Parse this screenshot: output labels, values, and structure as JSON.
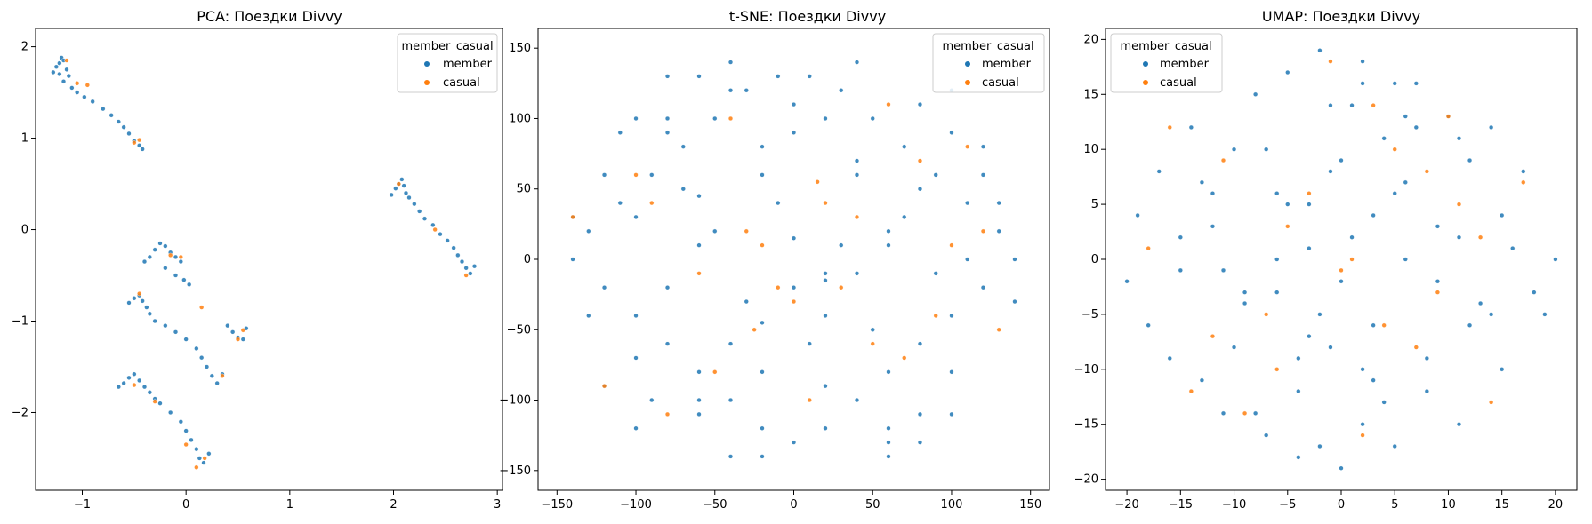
{
  "figure": {
    "background": "#ffffff"
  },
  "colors": {
    "member": "#1f77b4",
    "casual": "#ff7f0e"
  },
  "chart_data": [
    {
      "type": "scatter",
      "id": "pca",
      "title": "PCA: Поездки Divvy",
      "xlabel": "",
      "ylabel": "",
      "xlim": [
        -1.45,
        3.05
      ],
      "ylim": [
        -2.85,
        2.2
      ],
      "xticks": [
        {
          "v": -1,
          "label": "−1"
        },
        {
          "v": 0,
          "label": "0"
        },
        {
          "v": 1,
          "label": "1"
        },
        {
          "v": 2,
          "label": "2"
        },
        {
          "v": 3,
          "label": "3"
        }
      ],
      "yticks": [
        {
          "v": -2,
          "label": "−2"
        },
        {
          "v": -1,
          "label": "−1"
        },
        {
          "v": 0,
          "label": "0"
        },
        {
          "v": 1,
          "label": "1"
        },
        {
          "v": 2,
          "label": "2"
        }
      ],
      "legend": {
        "title": "member_casual",
        "position": "top-right",
        "entries": [
          {
            "label": "member",
            "color": "#1f77b4"
          },
          {
            "label": "casual",
            "color": "#ff7f0e"
          }
        ]
      },
      "series": [
        {
          "name": "member",
          "color": "#1f77b4",
          "x": [
            -1.28,
            -1.25,
            -1.22,
            -1.2,
            -1.18,
            -1.15,
            -1.13,
            -1.22,
            -1.18,
            -1.1,
            -1.05,
            -0.98,
            -0.9,
            -0.8,
            -0.72,
            -0.65,
            -0.6,
            -0.55,
            -0.5,
            -0.45,
            -0.42,
            1.98,
            2.02,
            2.05,
            2.08,
            2.1,
            2.12,
            2.15,
            2.2,
            2.25,
            2.3,
            2.38,
            2.45,
            2.52,
            2.58,
            2.62,
            2.66,
            2.7,
            2.74,
            2.78,
            -0.4,
            -0.35,
            -0.3,
            -0.25,
            -0.2,
            -0.15,
            -0.1,
            -0.05,
            -0.2,
            -0.1,
            -0.02,
            0.03,
            -0.55,
            -0.5,
            -0.45,
            -0.42,
            -0.38,
            -0.35,
            -0.3,
            -0.2,
            -0.1,
            0.0,
            0.1,
            0.15,
            0.2,
            0.25,
            0.3,
            0.35,
            0.4,
            0.45,
            0.5,
            0.55,
            0.58,
            -0.65,
            -0.6,
            -0.55,
            -0.5,
            -0.45,
            -0.4,
            -0.35,
            -0.3,
            -0.25,
            -0.15,
            -0.05,
            0.0,
            0.05,
            0.1,
            0.13,
            0.17,
            0.22
          ],
          "y": [
            1.72,
            1.78,
            1.82,
            1.88,
            1.85,
            1.75,
            1.68,
            1.7,
            1.62,
            1.55,
            1.5,
            1.45,
            1.4,
            1.32,
            1.25,
            1.18,
            1.12,
            1.05,
            0.97,
            0.92,
            0.88,
            0.38,
            0.45,
            0.5,
            0.55,
            0.48,
            0.4,
            0.35,
            0.28,
            0.2,
            0.12,
            0.05,
            -0.05,
            -0.12,
            -0.2,
            -0.28,
            -0.35,
            -0.42,
            -0.48,
            -0.4,
            -0.35,
            -0.3,
            -0.22,
            -0.15,
            -0.18,
            -0.25,
            -0.3,
            -0.35,
            -0.42,
            -0.5,
            -0.55,
            -0.6,
            -0.8,
            -0.75,
            -0.72,
            -0.78,
            -0.85,
            -0.92,
            -1.0,
            -1.05,
            -1.12,
            -1.2,
            -1.3,
            -1.4,
            -1.5,
            -1.6,
            -1.68,
            -1.58,
            -1.05,
            -1.12,
            -1.18,
            -1.2,
            -1.08,
            -1.72,
            -1.68,
            -1.62,
            -1.58,
            -1.65,
            -1.72,
            -1.78,
            -1.85,
            -1.9,
            -2.0,
            -2.1,
            -2.2,
            -2.3,
            -2.4,
            -2.5,
            -2.55,
            -2.45
          ]
        },
        {
          "name": "casual",
          "color": "#ff7f0e",
          "x": [
            -1.15,
            -1.05,
            -0.95,
            -0.5,
            -0.45,
            2.05,
            2.4,
            2.7,
            -0.15,
            -0.05,
            -0.45,
            0.15,
            0.5,
            0.55,
            0.35,
            -0.5,
            -0.3,
            0.0,
            0.1,
            0.18
          ],
          "y": [
            1.85,
            1.6,
            1.58,
            0.95,
            0.98,
            0.5,
            0.0,
            -0.5,
            -0.28,
            -0.3,
            -0.7,
            -0.85,
            -1.2,
            -1.1,
            -1.6,
            -1.7,
            -1.88,
            -2.35,
            -2.6,
            -2.5
          ]
        }
      ]
    },
    {
      "type": "scatter",
      "id": "tsne",
      "title": "t-SNE: Поездки Divvy",
      "xlabel": "",
      "ylabel": "",
      "xlim": [
        -162,
        162
      ],
      "ylim": [
        -164,
        164
      ],
      "xticks": [
        {
          "v": -150,
          "label": "−150"
        },
        {
          "v": -100,
          "label": "−100"
        },
        {
          "v": -50,
          "label": "−50"
        },
        {
          "v": 0,
          "label": "0"
        },
        {
          "v": 50,
          "label": "50"
        },
        {
          "v": 100,
          "label": "100"
        },
        {
          "v": 150,
          "label": "150"
        }
      ],
      "yticks": [
        {
          "v": -150,
          "label": "−150"
        },
        {
          "v": -100,
          "label": "−100"
        },
        {
          "v": -50,
          "label": "−50"
        },
        {
          "v": 0,
          "label": "0"
        },
        {
          "v": 50,
          "label": "50"
        },
        {
          "v": 100,
          "label": "100"
        },
        {
          "v": 150,
          "label": "150"
        }
      ],
      "legend": {
        "title": "member_casual",
        "position": "top-right",
        "entries": [
          {
            "label": "member",
            "color": "#1f77b4"
          },
          {
            "label": "casual",
            "color": "#ff7f0e"
          }
        ]
      },
      "series": [
        {
          "name": "member",
          "color": "#1f77b4",
          "x": [
            -140,
            -130,
            -120,
            -110,
            -100,
            -90,
            -80,
            -70,
            -60,
            -50,
            -40,
            -30,
            -20,
            -10,
            0,
            10,
            20,
            30,
            40,
            50,
            60,
            70,
            80,
            90,
            100,
            110,
            120,
            130,
            140,
            -140,
            -120,
            -100,
            -80,
            -60,
            -40,
            -20,
            0,
            20,
            40,
            60,
            80,
            100,
            120,
            140,
            -130,
            -110,
            -90,
            -70,
            -50,
            -30,
            -10,
            10,
            30,
            50,
            70,
            90,
            110,
            130,
            -120,
            -100,
            -80,
            -60,
            -40,
            -20,
            0,
            20,
            40,
            60,
            80,
            100,
            120,
            -100,
            -80,
            -60,
            -40,
            -20,
            0,
            20,
            40,
            60,
            80,
            100,
            -60,
            -40,
            -20,
            0,
            20,
            40,
            60,
            -60,
            -20,
            20,
            60,
            -100,
            100,
            -80,
            80
          ],
          "y": [
            0,
            20,
            -20,
            40,
            -40,
            60,
            -60,
            80,
            -80,
            100,
            -100,
            120,
            -120,
            130,
            -130,
            130,
            -120,
            120,
            -100,
            100,
            -80,
            80,
            -60,
            60,
            -40,
            40,
            -20,
            20,
            0,
            30,
            60,
            -70,
            90,
            -110,
            140,
            -140,
            110,
            -90,
            70,
            -130,
            110,
            -80,
            60,
            -30,
            -40,
            90,
            -100,
            50,
            20,
            -30,
            40,
            -60,
            10,
            -50,
            30,
            -10,
            0,
            40,
            -90,
            30,
            -20,
            10,
            -60,
            80,
            -20,
            -40,
            60,
            20,
            -110,
            120,
            80,
            -120,
            100,
            -100,
            120,
            -80,
            90,
            100,
            -10,
            -120,
            50,
            90,
            130,
            -140,
            60,
            15,
            -15,
            140,
            -140,
            45,
            -45,
            -10,
            10,
            100,
            -110,
            130,
            -130
          ]
        },
        {
          "name": "casual",
          "color": "#ff7f0e",
          "x": [
            -140,
            -100,
            -60,
            -30,
            -10,
            0,
            20,
            50,
            80,
            110,
            130,
            -120,
            -80,
            -40,
            10,
            40,
            70,
            100,
            -90,
            -50,
            30,
            60,
            -20,
            -25,
            15,
            90,
            120
          ],
          "y": [
            30,
            60,
            -10,
            20,
            -20,
            -30,
            40,
            -60,
            70,
            80,
            -50,
            -90,
            -110,
            100,
            -100,
            30,
            -70,
            10,
            40,
            -80,
            -20,
            110,
            10,
            -50,
            55,
            -40,
            20
          ]
        }
      ]
    },
    {
      "type": "scatter",
      "id": "umap",
      "title": "UMAP: Поездки Divvy",
      "xlabel": "",
      "ylabel": "",
      "xlim": [
        -22,
        22
      ],
      "ylim": [
        -21,
        21
      ],
      "xticks": [
        {
          "v": -20,
          "label": "−20"
        },
        {
          "v": -15,
          "label": "−15"
        },
        {
          "v": -10,
          "label": "−10"
        },
        {
          "v": -5,
          "label": "−5"
        },
        {
          "v": 0,
          "label": "0"
        },
        {
          "v": 5,
          "label": "5"
        },
        {
          "v": 10,
          "label": "10"
        },
        {
          "v": 15,
          "label": "15"
        },
        {
          "v": 20,
          "label": "20"
        }
      ],
      "yticks": [
        {
          "v": -20,
          "label": "−20"
        },
        {
          "v": -15,
          "label": "−15"
        },
        {
          "v": -10,
          "label": "−10"
        },
        {
          "v": -5,
          "label": "−5"
        },
        {
          "v": 0,
          "label": "0"
        },
        {
          "v": 5,
          "label": "5"
        },
        {
          "v": 10,
          "label": "10"
        },
        {
          "v": 15,
          "label": "15"
        },
        {
          "v": 20,
          "label": "20"
        }
      ],
      "legend": {
        "title": "member_casual",
        "position": "top-left",
        "entries": [
          {
            "label": "member",
            "color": "#1f77b4"
          },
          {
            "label": "casual",
            "color": "#ff7f0e"
          }
        ]
      },
      "series": [
        {
          "name": "member",
          "color": "#1f77b4",
          "x": [
            -20,
            -19,
            -18,
            -17,
            -16,
            -15,
            -14,
            -13,
            -12,
            -11,
            -10,
            -9,
            -8,
            -7,
            -6,
            -5,
            -4,
            -3,
            -2,
            -1,
            0,
            1,
            2,
            3,
            4,
            5,
            6,
            7,
            8,
            9,
            10,
            11,
            12,
            13,
            14,
            15,
            16,
            17,
            18,
            19,
            20,
            -15,
            -12,
            -9,
            -6,
            -3,
            0,
            3,
            6,
            9,
            12,
            15,
            -13,
            -10,
            -7,
            -4,
            -1,
            2,
            5,
            8,
            11,
            14,
            -8,
            -5,
            -2,
            1,
            4,
            7,
            -6,
            -3,
            0,
            3,
            6,
            -4,
            -1,
            2,
            5,
            -11,
            11,
            -2,
            2
          ],
          "y": [
            -2,
            4,
            -6,
            8,
            -9,
            2,
            12,
            -11,
            6,
            -14,
            10,
            -3,
            15,
            -16,
            0,
            17,
            -18,
            5,
            19,
            -8,
            -19,
            14,
            18,
            -6,
            11,
            -17,
            7,
            16,
            -12,
            3,
            13,
            -15,
            9,
            -4,
            12,
            -10,
            1,
            8,
            -3,
            -5,
            0,
            -1,
            3,
            -4,
            6,
            -7,
            9,
            -11,
            13,
            -2,
            -6,
            4,
            7,
            -8,
            10,
            -12,
            14,
            -15,
            16,
            -9,
            11,
            -5,
            -14,
            5,
            -5,
            2,
            -13,
            12,
            -3,
            1,
            -2,
            4,
            0,
            -9,
            8,
            -10,
            6,
            -1,
            2,
            -17,
            16
          ]
        },
        {
          "name": "casual",
          "color": "#ff7f0e",
          "x": [
            -18,
            -14,
            -11,
            -7,
            -3,
            0,
            3,
            7,
            11,
            14,
            17,
            -16,
            -9,
            -5,
            2,
            5,
            9,
            13,
            -12,
            -1,
            4,
            10,
            -6,
            1,
            8
          ],
          "y": [
            1,
            -12,
            9,
            -5,
            6,
            -1,
            14,
            -8,
            5,
            -13,
            7,
            12,
            -14,
            3,
            -16,
            10,
            -3,
            2,
            -7,
            18,
            -6,
            13,
            -10,
            0,
            8
          ]
        }
      ]
    }
  ]
}
